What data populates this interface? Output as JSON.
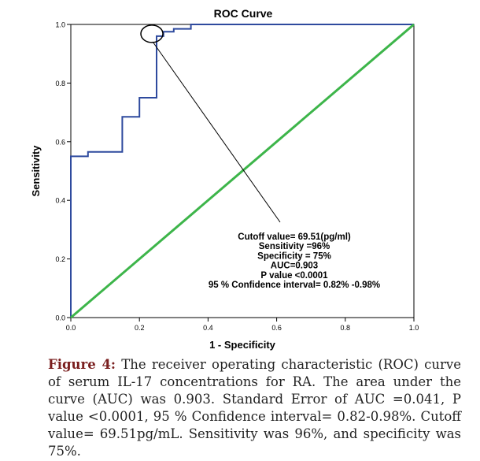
{
  "chart_data": {
    "type": "line",
    "title": "ROC Curve",
    "xlabel": "1 - Specificity",
    "ylabel": "Sensitivity",
    "xlim": [
      0.0,
      1.0
    ],
    "ylim": [
      0.0,
      1.0
    ],
    "x_ticks": [
      "0.0",
      "0.2",
      "0.4",
      "0.6",
      "0.8",
      "1.0"
    ],
    "y_ticks": [
      "0.0",
      "0.2",
      "0.4",
      "0.6",
      "0.8",
      "1.0"
    ],
    "grid": false,
    "series": [
      {
        "color": "#2e4a9e",
        "x": [
          0.0,
          0.0,
          0.05,
          0.05,
          0.15,
          0.15,
          0.2,
          0.2,
          0.25,
          0.25,
          0.27,
          0.27,
          0.3,
          0.3,
          0.35,
          0.35,
          1.0
        ],
        "y": [
          0.0,
          0.55,
          0.55,
          0.565,
          0.565,
          0.685,
          0.685,
          0.75,
          0.75,
          0.96,
          0.96,
          0.975,
          0.975,
          0.985,
          0.985,
          1.0,
          1.0
        ]
      },
      {
        "color": "#3db54a",
        "x": [
          0.0,
          1.0
        ],
        "y": [
          0.0,
          1.0
        ]
      }
    ],
    "annotations": {
      "lines": [
        "Cutoff value= 69.51(pg/ml)",
        "Sensitivity =96%",
        "Specificity = 75%",
        "AUC=0.903",
        "P value <0.0001",
        "95 % Confidence interval= 0.82% -0.98%"
      ],
      "marker": {
        "x": 0.25,
        "y": 0.96
      }
    }
  },
  "caption": {
    "label": "Figure 4:",
    "text": " The receiver operating characteristic (ROC) curve of serum IL-17 concentrations for RA. The area under the curve (AUC) was 0.903. Standard Error of AUC =0.041, P value <0.0001, 95 % Confidence interval= 0.82-0.98%. Cutoff value= 69.51pg/mL. Sensitivity was 96%, and specificity was 75%."
  }
}
